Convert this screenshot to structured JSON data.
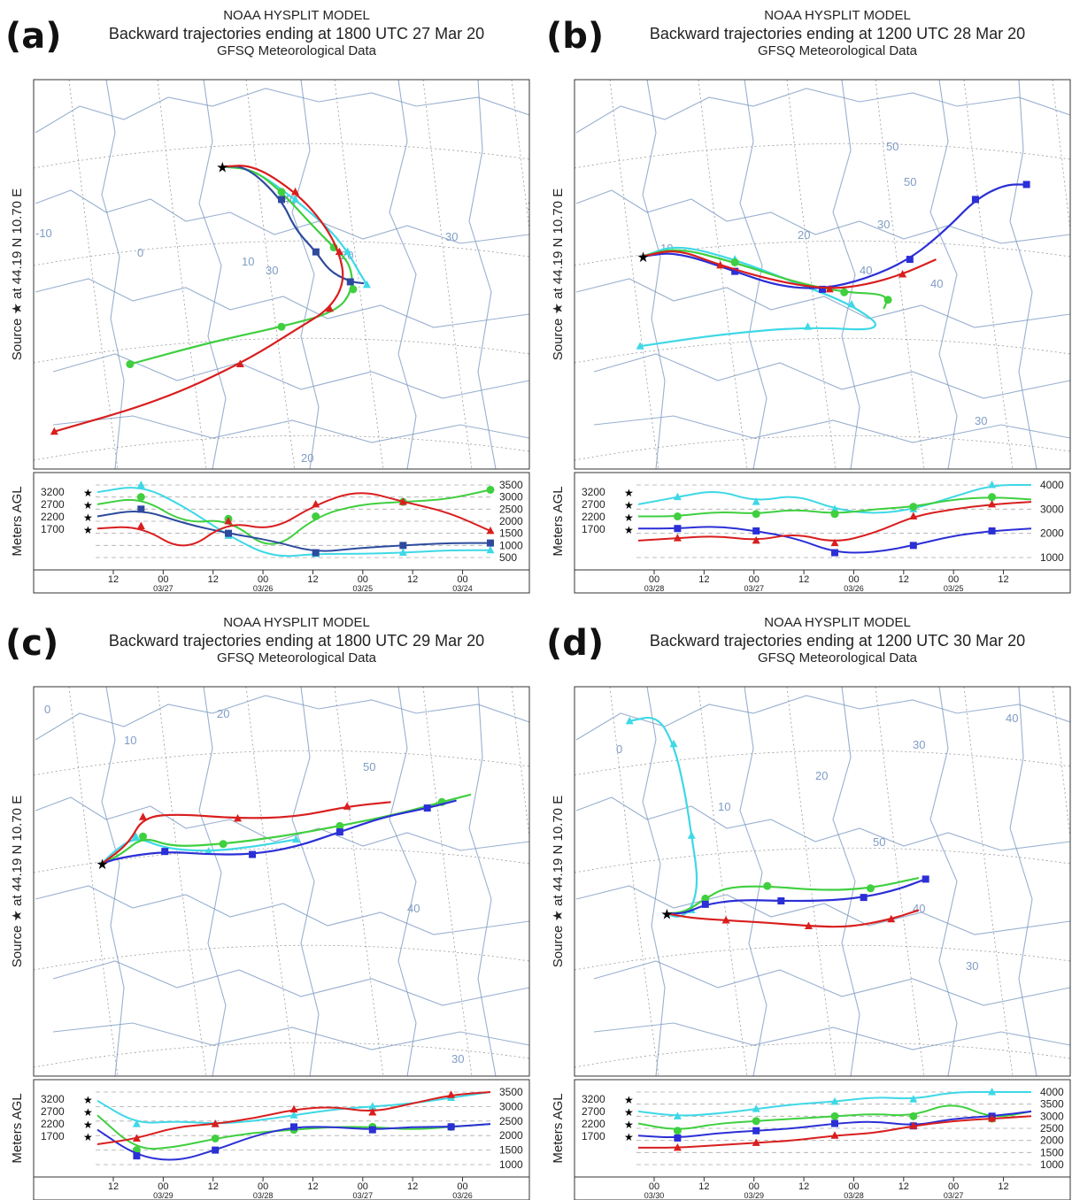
{
  "model_title": "NOAA HYSPLIT MODEL",
  "met_data": "GFSQ Meteorological Data",
  "source_label": "Source ★ at 44.19 N 10.70 E",
  "y_label": "Meters AGL",
  "colors": {
    "red": "#d91e1e",
    "blue": "#2b2fd6",
    "green": "#3fcf3f",
    "cyan": "#3ed8e6",
    "navy": "#2d4a9e",
    "map": "#7f9cc4",
    "grid": "#9a9a9a"
  },
  "chart_data": [
    {
      "id": "a",
      "panel_label": "(a)",
      "type": "line",
      "title": "Backward trajectories ending at 1800 UTC 27 Mar 20",
      "start_heights_label": [
        "3200",
        "2700",
        "2200",
        "1700"
      ],
      "right_axis_ticks": [
        "3500",
        "3000",
        "2500",
        "2000",
        "1500",
        "1000",
        "500"
      ],
      "x_ticks": [
        {
          "hour": "12",
          "date": ""
        },
        {
          "hour": "00",
          "date": "03/27"
        },
        {
          "hour": "12",
          "date": ""
        },
        {
          "hour": "00",
          "date": "03/26"
        },
        {
          "hour": "12",
          "date": ""
        },
        {
          "hour": "00",
          "date": "03/25"
        },
        {
          "hour": "12",
          "date": ""
        },
        {
          "hour": "00",
          "date": "03/24"
        }
      ],
      "map_labels": [
        "40",
        "30",
        "20",
        "10",
        "0",
        "30",
        "20",
        "10",
        "-10"
      ],
      "series": [
        {
          "color": "cyan",
          "height": [
            3200,
            3500,
            2600,
            1400,
            400,
            650,
            650,
            700,
            800,
            800
          ],
          "path": [
            [
              10.7,
              44.2
            ],
            [
              13,
              44
            ],
            [
              16,
              42
            ],
            [
              18.5,
              40
            ],
            [
              19.8,
              38.5
            ],
            [
              20.6,
              37.2
            ],
            [
              21.2,
              36.3
            ]
          ]
        },
        {
          "color": "green",
          "height": [
            2700,
            3000,
            1900,
            2100,
            700,
            2200,
            2700,
            2800,
            2900,
            3300
          ],
          "path": [
            [
              10.7,
              44.2
            ],
            [
              13,
              44
            ],
            [
              15,
              42.5
            ],
            [
              17,
              40.5
            ],
            [
              18.8,
              38.8
            ],
            [
              20,
              37.7
            ],
            [
              20.2,
              36
            ],
            [
              19,
              34.5
            ],
            [
              15,
              33.5
            ],
            [
              10,
              32.5
            ],
            [
              4,
              31
            ]
          ]
        },
        {
          "color": "navy",
          "height": [
            2200,
            2500,
            1900,
            1500,
            1200,
            700,
            900,
            1000,
            1100,
            1100
          ],
          "path": [
            [
              10.7,
              44.2
            ],
            [
              12.5,
              44.2
            ],
            [
              15,
              42
            ],
            [
              16,
              40
            ],
            [
              17.5,
              38.5
            ],
            [
              18.5,
              37.2
            ],
            [
              20,
              36.5
            ],
            [
              21,
              36.4
            ]
          ]
        },
        {
          "color": "red",
          "height": [
            1700,
            1800,
            700,
            2000,
            1600,
            2700,
            3300,
            2800,
            2400,
            1600
          ],
          "path": [
            [
              10.7,
              44.2
            ],
            [
              13,
              44.3
            ],
            [
              16,
              42.5
            ],
            [
              18,
              40.5
            ],
            [
              19.2,
              38.5
            ],
            [
              19.6,
              36.5
            ],
            [
              18.5,
              34.7
            ],
            [
              16.4,
              33.5
            ],
            [
              12,
              31
            ],
            [
              6,
              28.5
            ],
            [
              -1.5,
              26.5
            ]
          ]
        }
      ]
    },
    {
      "id": "b",
      "panel_label": "(b)",
      "type": "line",
      "title": "Backward trajectories ending at 1200 UTC 28 Mar 20",
      "start_heights_label": [
        "3200",
        "2700",
        "2200",
        "1700"
      ],
      "right_axis_ticks": [
        "4000",
        "3000",
        "2000",
        "1000"
      ],
      "x_ticks": [
        {
          "hour": "00",
          "date": "03/28"
        },
        {
          "hour": "12",
          "date": ""
        },
        {
          "hour": "00",
          "date": "03/27"
        },
        {
          "hour": "12",
          "date": ""
        },
        {
          "hour": "00",
          "date": "03/26"
        },
        {
          "hour": "12",
          "date": ""
        },
        {
          "hour": "00",
          "date": "03/25"
        },
        {
          "hour": "12",
          "date": ""
        }
      ],
      "map_labels": [
        "50",
        "40",
        "30",
        "20",
        "10",
        "50",
        "40",
        "30"
      ],
      "series": [
        {
          "color": "cyan",
          "height": [
            3200,
            3500,
            3800,
            3300,
            3600,
            3000,
            2800,
            3000,
            3500,
            4200,
            4400
          ],
          "path": [
            [
              10.7,
              44.2
            ],
            [
              13,
              45
            ],
            [
              17,
              44
            ],
            [
              21,
              42.5
            ],
            [
              25,
              41
            ],
            [
              27.5,
              39.2
            ],
            [
              22,
              39.5
            ],
            [
              16,
              39
            ],
            [
              10.5,
              38.2
            ]
          ]
        },
        {
          "color": "green",
          "height": [
            2700,
            2700,
            2900,
            2800,
            3000,
            2800,
            3000,
            3100,
            3400,
            3500,
            3400
          ],
          "path": [
            [
              10.7,
              44.2
            ],
            [
              13,
              44.8
            ],
            [
              17,
              43.8
            ],
            [
              21,
              42.5
            ],
            [
              24.5,
              41.8
            ],
            [
              27,
              41.7
            ],
            [
              27.5,
              41.3
            ],
            [
              27.2,
              40.7
            ]
          ]
        },
        {
          "color": "blue",
          "height": [
            2200,
            2200,
            2300,
            2100,
            1800,
            1200,
            1200,
            1500,
            1900,
            2100,
            2200
          ],
          "path": [
            [
              10.7,
              44.2
            ],
            [
              13,
              44.5
            ],
            [
              17,
              43.2
            ],
            [
              20,
              42.2
            ],
            [
              23,
              42
            ],
            [
              26,
              42.7
            ],
            [
              29,
              44
            ],
            [
              31.5,
              46
            ],
            [
              33.5,
              48
            ],
            [
              35.5,
              49
            ],
            [
              37,
              49
            ]
          ]
        },
        {
          "color": "red",
          "height": [
            1700,
            1800,
            1900,
            1700,
            2000,
            1600,
            2000,
            2700,
            3000,
            3200,
            3300
          ],
          "path": [
            [
              10.7,
              44.2
            ],
            [
              13,
              44.7
            ],
            [
              16,
              43.6
            ],
            [
              20,
              42.5
            ],
            [
              23.5,
              42
            ],
            [
              26,
              42.3
            ],
            [
              28.5,
              43
            ],
            [
              30.8,
              44
            ]
          ]
        }
      ]
    },
    {
      "id": "c",
      "panel_label": "(c)",
      "type": "line",
      "title": "Backward trajectories ending at 1800 UTC 29 Mar 20",
      "start_heights_label": [
        "3200",
        "2700",
        "2200",
        "1700"
      ],
      "right_axis_ticks": [
        "3500",
        "3000",
        "2500",
        "2000",
        "1500",
        "1000"
      ],
      "x_ticks": [
        {
          "hour": "12",
          "date": ""
        },
        {
          "hour": "00",
          "date": "03/29"
        },
        {
          "hour": "12",
          "date": ""
        },
        {
          "hour": "00",
          "date": "03/28"
        },
        {
          "hour": "12",
          "date": ""
        },
        {
          "hour": "00",
          "date": "03/27"
        },
        {
          "hour": "12",
          "date": ""
        },
        {
          "hour": "00",
          "date": "03/26"
        }
      ],
      "map_labels": [
        "40",
        "30",
        "20",
        "10",
        "0",
        "50",
        "40",
        "30"
      ],
      "series": [
        {
          "color": "cyan",
          "height": [
            3200,
            2400,
            2500,
            2400,
            2500,
            2700,
            2900,
            3000,
            3100,
            3300,
            3500
          ],
          "path": [
            [
              10.7,
              44.2
            ],
            [
              11.5,
              45
            ],
            [
              13,
              46
            ],
            [
              15,
              45.2
            ],
            [
              18,
              45
            ],
            [
              21,
              45.3
            ],
            [
              24,
              45.8
            ]
          ]
        },
        {
          "color": "green",
          "height": [
            2700,
            1500,
            1600,
            1900,
            2100,
            2200,
            2300,
            2300,
            2200,
            2300,
            2400
          ],
          "path": [
            [
              10.7,
              44.2
            ],
            [
              12,
              44.8
            ],
            [
              13.5,
              46
            ],
            [
              15.5,
              45.3
            ],
            [
              19,
              45.5
            ],
            [
              23,
              46
            ],
            [
              27,
              46.7
            ],
            [
              31,
              47.5
            ],
            [
              34,
              48.3
            ],
            [
              36,
              48.8
            ]
          ]
        },
        {
          "color": "blue",
          "height": [
            2200,
            1300,
            1100,
            1500,
            2000,
            2300,
            2300,
            2200,
            2300,
            2300,
            2400
          ],
          "path": [
            [
              10.7,
              44.2
            ],
            [
              12,
              44.6
            ],
            [
              15,
              45
            ],
            [
              18,
              44.8
            ],
            [
              21,
              44.8
            ],
            [
              24,
              45.3
            ],
            [
              27,
              46.3
            ],
            [
              30,
              47.3
            ],
            [
              33,
              47.9
            ],
            [
              35,
              48.4
            ]
          ]
        },
        {
          "color": "red",
          "height": [
            1700,
            1900,
            2300,
            2400,
            2600,
            2900,
            3000,
            2800,
            3100,
            3400,
            3800
          ],
          "path": [
            [
              10.7,
              44.2
            ],
            [
              12.5,
              45.5
            ],
            [
              13.5,
              47.3
            ],
            [
              16,
              47.5
            ],
            [
              20,
              47.2
            ],
            [
              24,
              47.3
            ],
            [
              27.5,
              48
            ],
            [
              30.5,
              48.3
            ]
          ]
        }
      ]
    },
    {
      "id": "d",
      "panel_label": "(d)",
      "type": "line",
      "title": "Backward trajectories ending at 1200 UTC 30 Mar 20",
      "start_heights_label": [
        "3200",
        "2700",
        "2200",
        "1700"
      ],
      "right_axis_ticks": [
        "4000",
        "3500",
        "3000",
        "2500",
        "2000",
        "1500",
        "1000"
      ],
      "x_ticks": [
        {
          "hour": "00",
          "date": "03/30"
        },
        {
          "hour": "12",
          "date": ""
        },
        {
          "hour": "00",
          "date": "03/29"
        },
        {
          "hour": "12",
          "date": ""
        },
        {
          "hour": "00",
          "date": "03/28"
        },
        {
          "hour": "12",
          "date": ""
        },
        {
          "hour": "00",
          "date": "03/27"
        },
        {
          "hour": "12",
          "date": ""
        }
      ],
      "map_labels": [
        "40",
        "30",
        "20",
        "10",
        "0",
        "50",
        "40",
        "30"
      ],
      "series": [
        {
          "color": "cyan",
          "height": [
            3200,
            3000,
            3100,
            3300,
            3500,
            3600,
            3800,
            3700,
            4000,
            4300,
            4200
          ],
          "path": [
            [
              10.7,
              44.2
            ],
            [
              11.5,
              43.8
            ],
            [
              12.5,
              44.5
            ],
            [
              13,
              47
            ],
            [
              12.5,
              51
            ],
            [
              12,
              55
            ],
            [
              11.2,
              59
            ],
            [
              10,
              61.5
            ],
            [
              8,
              61
            ]
          ]
        },
        {
          "color": "green",
          "height": [
            2700,
            2400,
            2700,
            2800,
            2900,
            3000,
            3100,
            3000,
            3600,
            2900,
            3200
          ],
          "path": [
            [
              10.7,
              44.2
            ],
            [
              12,
              44.3
            ],
            [
              13.5,
              45.5
            ],
            [
              15,
              46.5
            ],
            [
              18,
              46.6
            ],
            [
              22,
              46.2
            ],
            [
              25.5,
              46.4
            ],
            [
              29,
              47.3
            ]
          ]
        },
        {
          "color": "blue",
          "height": [
            2200,
            2100,
            2300,
            2400,
            2500,
            2700,
            2800,
            2600,
            2900,
            3000,
            3200
          ],
          "path": [
            [
              10.7,
              44.2
            ],
            [
              12,
              44.2
            ],
            [
              13.5,
              45
            ],
            [
              16,
              45.4
            ],
            [
              19,
              45.3
            ],
            [
              22,
              45.3
            ],
            [
              25,
              45.6
            ],
            [
              27.5,
              46.3
            ],
            [
              29.5,
              47.2
            ]
          ]
        },
        {
          "color": "red",
          "height": [
            1700,
            1700,
            1800,
            1900,
            2000,
            2200,
            2300,
            2600,
            2800,
            2900,
            3000
          ],
          "path": [
            [
              10.7,
              44.2
            ],
            [
              12.5,
              43.8
            ],
            [
              15,
              43.6
            ],
            [
              18,
              43.4
            ],
            [
              21,
              43.1
            ],
            [
              24,
              43
            ],
            [
              27,
              43.7
            ],
            [
              29,
              44.5
            ]
          ]
        }
      ]
    }
  ]
}
